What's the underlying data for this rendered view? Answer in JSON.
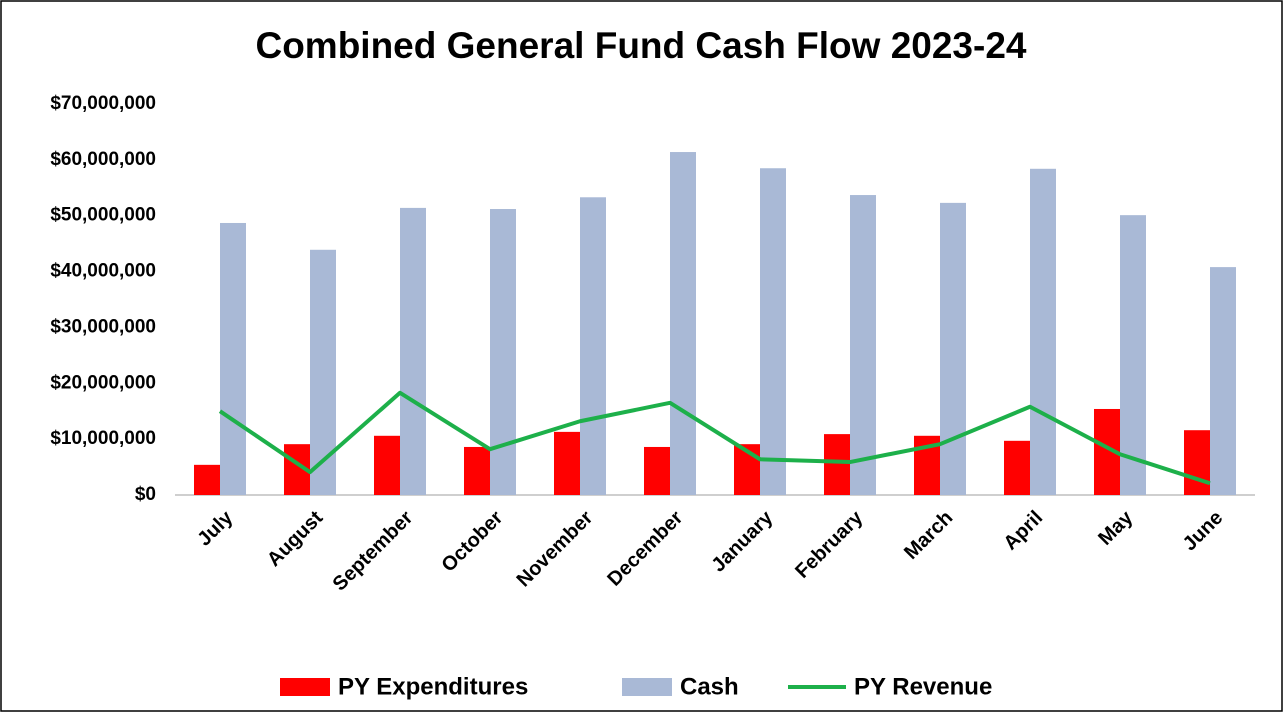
{
  "chart_data": {
    "type": "bar",
    "title": "Combined General Fund Cash Flow 2023-24",
    "categories": [
      "July",
      "August",
      "September",
      "October",
      "November",
      "December",
      "January",
      "February",
      "March",
      "April",
      "May",
      "June"
    ],
    "series": [
      {
        "name": "PY Expenditures",
        "type": "bar",
        "color": "#ff0000",
        "values": [
          5400000,
          9100000,
          10600000,
          8600000,
          11300000,
          8600000,
          9100000,
          10900000,
          10600000,
          9700000,
          15400000,
          11600000
        ]
      },
      {
        "name": "Cash",
        "type": "bar",
        "color": "#a9b9d6",
        "values": [
          48700000,
          43900000,
          51400000,
          51200000,
          53300000,
          61400000,
          58500000,
          53700000,
          52300000,
          58400000,
          50100000,
          40800000
        ]
      },
      {
        "name": "PY Revenue",
        "type": "line",
        "color": "#1db04a",
        "values": [
          15000000,
          4100000,
          18300000,
          8200000,
          13200000,
          16500000,
          6400000,
          5900000,
          9100000,
          15800000,
          7300000,
          2100000
        ]
      }
    ],
    "ylim": [
      0,
      70000000
    ],
    "yticks": [
      {
        "value": 0,
        "label": "$0"
      },
      {
        "value": 10000000,
        "label": "$10,000,000"
      },
      {
        "value": 20000000,
        "label": "$20,000,000"
      },
      {
        "value": 30000000,
        "label": "$30,000,000"
      },
      {
        "value": 40000000,
        "label": "$40,000,000"
      },
      {
        "value": 50000000,
        "label": "$50,000,000"
      },
      {
        "value": 60000000,
        "label": "$60,000,000"
      },
      {
        "value": 70000000,
        "label": "$70,000,000"
      }
    ],
    "grid": false,
    "legend": "bottom"
  }
}
